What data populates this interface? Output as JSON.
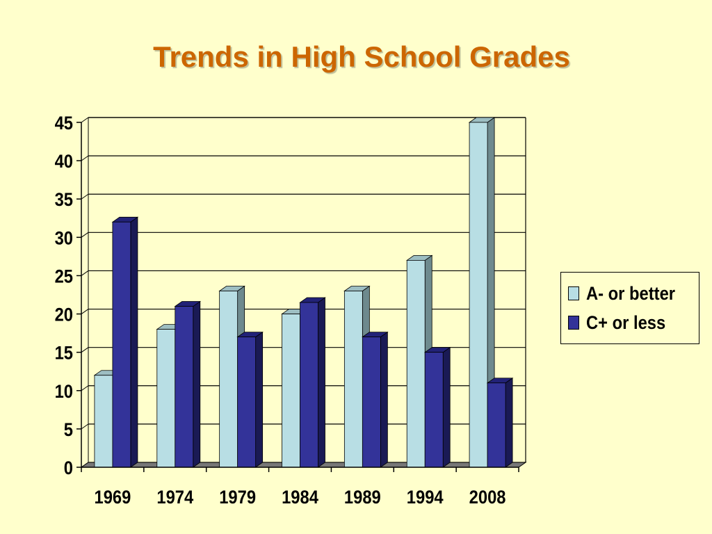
{
  "page": {
    "background": "#FFFFCC"
  },
  "chart_data": {
    "type": "bar",
    "title": "Trends in High School Grades",
    "title_color": "#CC6600",
    "categories": [
      "1969",
      "1974",
      "1979",
      "1984",
      "1989",
      "1994",
      "2008"
    ],
    "series": [
      {
        "name": "A- or better",
        "values": [
          12,
          18,
          23,
          20,
          23,
          27,
          45
        ],
        "color": "#B8DEE4",
        "side_color": "#6E8A8E",
        "top_color": "#9DBEC2"
      },
      {
        "name": "C+ or less",
        "values": [
          32,
          21,
          17,
          21.5,
          17,
          15,
          11
        ],
        "color": "#333399",
        "side_color": "#1A1A55",
        "top_color": "#222277"
      }
    ],
    "ylim": [
      0,
      45
    ],
    "yticks": [
      0,
      5,
      10,
      15,
      20,
      25,
      30,
      35,
      40,
      45
    ],
    "grid": true,
    "legend_position": "right",
    "xlabel": "",
    "ylabel": ""
  }
}
